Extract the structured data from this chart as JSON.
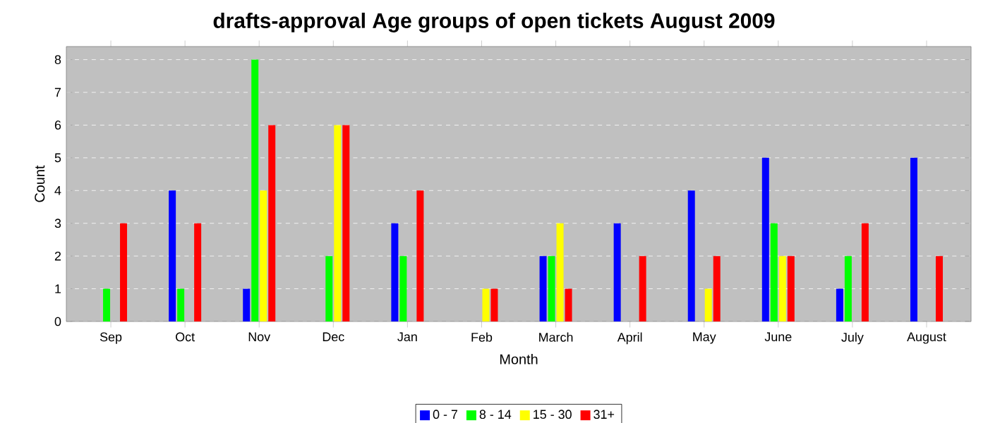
{
  "chart_data": {
    "type": "bar",
    "title": "drafts-approval Age groups of open tickets August 2009",
    "xlabel": "Month",
    "ylabel": "Count",
    "categories": [
      "Sep",
      "Oct",
      "Nov",
      "Dec",
      "Jan",
      "Feb",
      "March",
      "April",
      "May",
      "June",
      "July",
      "August"
    ],
    "series": [
      {
        "name": "0 - 7",
        "color": "#0000ff",
        "values": [
          0,
          4,
          1,
          0,
          3,
          0,
          2,
          3,
          4,
          5,
          1,
          5
        ]
      },
      {
        "name": "8 - 14",
        "color": "#00ff00",
        "values": [
          1,
          1,
          8,
          2,
          2,
          0,
          2,
          0,
          0,
          3,
          2,
          0
        ]
      },
      {
        "name": "15 - 30",
        "color": "#ffff00",
        "values": [
          0,
          0,
          4,
          6,
          0,
          1,
          3,
          0,
          1,
          2,
          0,
          0
        ]
      },
      {
        "name": "31+",
        "color": "#ff0000",
        "values": [
          3,
          3,
          6,
          6,
          4,
          1,
          1,
          2,
          2,
          2,
          3,
          2
        ]
      }
    ],
    "ylim": [
      0,
      8.4
    ],
    "yticks": [
      0,
      1,
      2,
      3,
      4,
      5,
      6,
      7,
      8
    ],
    "grid": "y",
    "legend": "bottom"
  }
}
